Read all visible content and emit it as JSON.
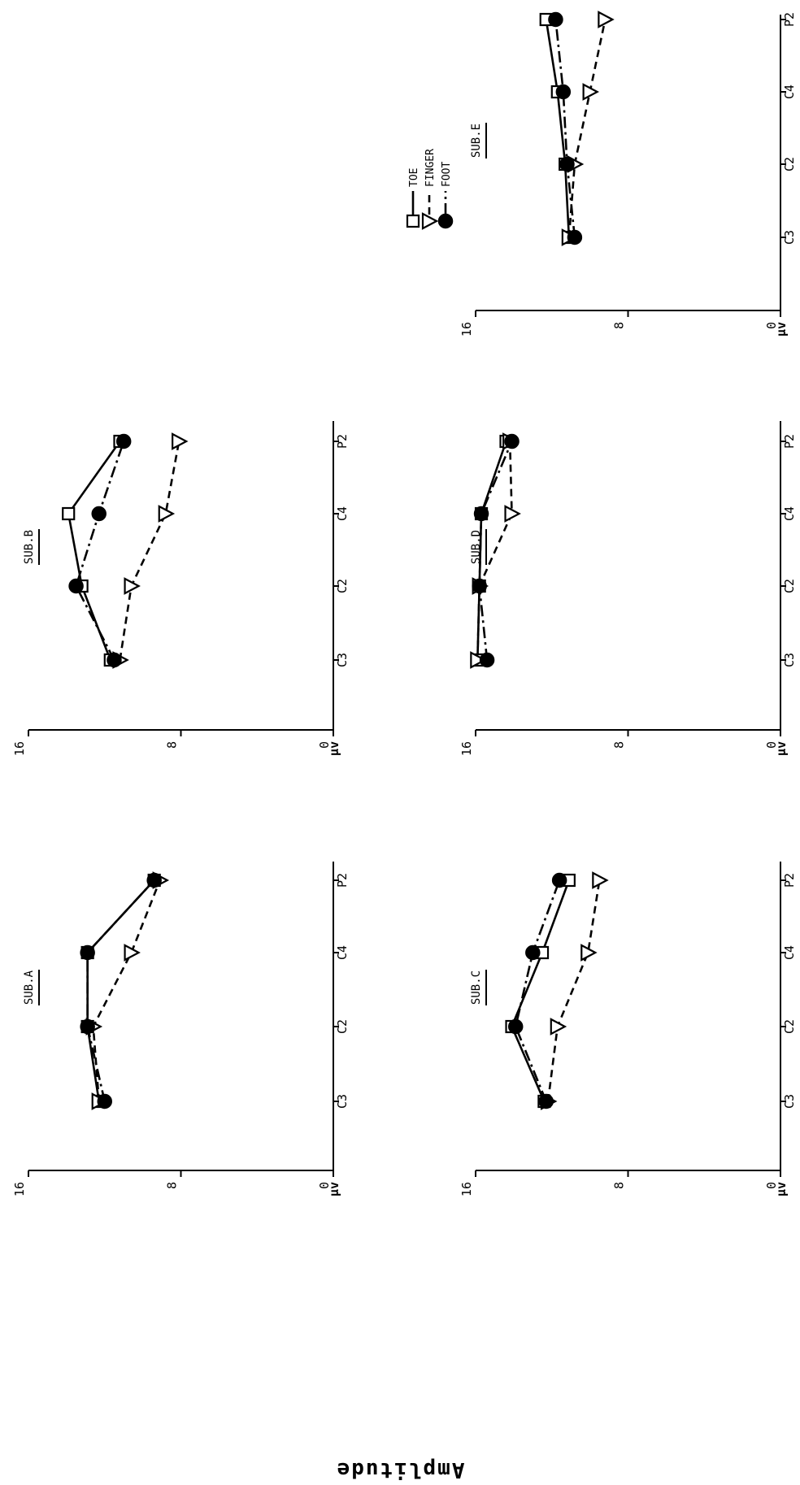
{
  "figure": {
    "ylabel": "Amplitude",
    "legend": {
      "placement": "right",
      "items": [
        {
          "label": "TOE",
          "marker": "square-open",
          "line": "solid"
        },
        {
          "label": "FINGER",
          "marker": "triangle-open",
          "line": "dashed"
        },
        {
          "label": "FOOT",
          "marker": "circle-filled",
          "line": "dash-dot"
        }
      ]
    }
  },
  "chart_data": [
    {
      "type": "line",
      "title": "SUB.A",
      "categories": [
        "C3",
        "C2",
        "C4",
        "P2"
      ],
      "y_ticks": [
        "0",
        "8",
        "16"
      ],
      "y_unit": "µv",
      "ylim": [
        0,
        16
      ],
      "series": [
        {
          "name": "TOE",
          "values": [
            12.3,
            12.9,
            12.9,
            9.4
          ]
        },
        {
          "name": "FINGER",
          "values": [
            12.3,
            12.6,
            10.6,
            9.1
          ]
        },
        {
          "name": "FOOT",
          "values": [
            12.0,
            12.9,
            12.9,
            9.4
          ]
        }
      ]
    },
    {
      "type": "line",
      "title": "SUB.B",
      "categories": [
        "C3",
        "C2",
        "C4",
        "P2"
      ],
      "y_ticks": [
        "0",
        "8",
        "16"
      ],
      "y_unit": "µv",
      "ylim": [
        0,
        16
      ],
      "series": [
        {
          "name": "TOE",
          "values": [
            11.7,
            13.2,
            13.9,
            11.2
          ]
        },
        {
          "name": "FINGER",
          "values": [
            11.2,
            10.6,
            8.8,
            8.1
          ]
        },
        {
          "name": "FOOT",
          "values": [
            11.5,
            13.5,
            12.3,
            11.0
          ]
        }
      ]
    },
    {
      "type": "line",
      "title": "SUB.C",
      "categories": [
        "C3",
        "C2",
        "C4",
        "P2"
      ],
      "y_ticks": [
        "0",
        "8",
        "16"
      ],
      "y_unit": "µv",
      "ylim": [
        0,
        16
      ],
      "series": [
        {
          "name": "TOE",
          "values": [
            12.4,
            14.1,
            12.5,
            11.1
          ]
        },
        {
          "name": "FINGER",
          "values": [
            12.2,
            11.7,
            10.1,
            9.5
          ]
        },
        {
          "name": "FOOT",
          "values": [
            12.3,
            13.9,
            13.0,
            11.6
          ]
        }
      ]
    },
    {
      "type": "line",
      "title": "SUB.D",
      "categories": [
        "C3",
        "C2",
        "C4",
        "P2"
      ],
      "y_ticks": [
        "0",
        "8",
        "16"
      ],
      "y_unit": "µv",
      "ylim": [
        0,
        16
      ],
      "series": [
        {
          "name": "TOE",
          "values": [
            15.9,
            15.8,
            15.7,
            14.4
          ]
        },
        {
          "name": "FINGER",
          "values": [
            15.9,
            15.8,
            14.1,
            14.2
          ]
        },
        {
          "name": "FOOT",
          "values": [
            15.4,
            15.8,
            15.7,
            14.1
          ]
        }
      ]
    },
    {
      "type": "line",
      "title": "SUB.E",
      "categories": [
        "C3",
        "C2",
        "C4",
        "P2"
      ],
      "y_ticks": [
        "0",
        "8",
        "16"
      ],
      "y_unit": "µv",
      "ylim": [
        0,
        16
      ],
      "series": [
        {
          "name": "TOE",
          "values": [
            11.1,
            11.3,
            11.7,
            12.3
          ]
        },
        {
          "name": "FINGER",
          "values": [
            11.1,
            10.8,
            10.0,
            9.2
          ]
        },
        {
          "name": "FOOT",
          "values": [
            10.8,
            11.2,
            11.4,
            11.8
          ]
        }
      ]
    }
  ]
}
